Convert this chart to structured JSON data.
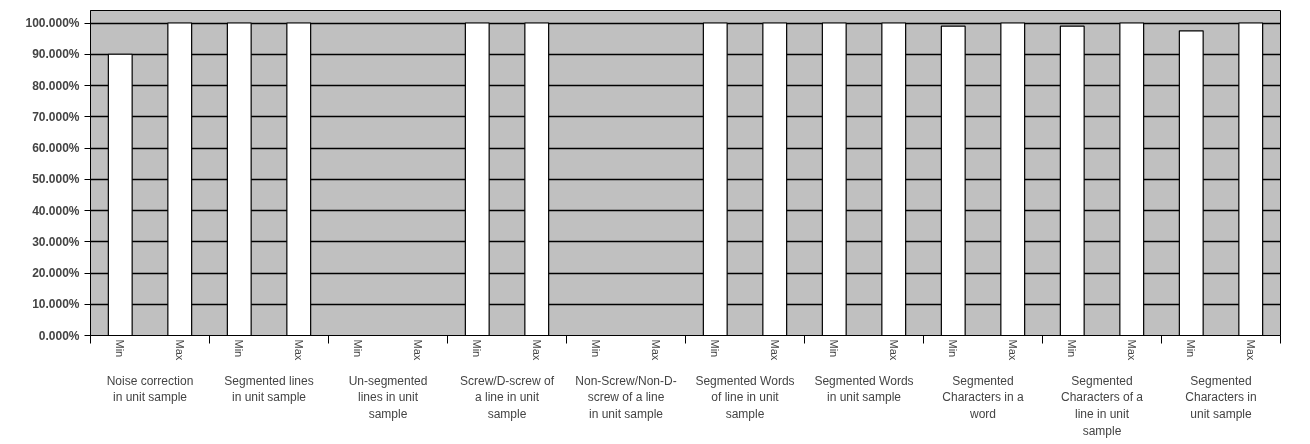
{
  "chart_data": {
    "type": "bar",
    "categories": [
      "Noise correction in unit sample",
      "Segmented lines in unit sample",
      "Un-segmented lines in unit sample",
      "Screw/D-screw of a line in unit sample",
      "Non-Screw/Non-D-screw of a line in unit sample",
      "Segmented Words of line in unit sample",
      "Segmented Words in unit sample",
      "Segmented Characters in a word",
      "Segmented Characters of a line in unit sample",
      "Segmented Characters in unit sample"
    ],
    "series": [
      {
        "name": "Min",
        "color": "#ffffff",
        "values": [
          90,
          100,
          0,
          100,
          0,
          100,
          100,
          99,
          99,
          97.5
        ]
      },
      {
        "name": "Max",
        "color": "#ffffff",
        "values": [
          100,
          100,
          0,
          100,
          0,
          100,
          100,
          100,
          100,
          100
        ]
      }
    ],
    "ylim": [
      0,
      100
    ],
    "yticks": [
      {
        "value": 0,
        "label": "0.000%"
      },
      {
        "value": 10,
        "label": "10.000%"
      },
      {
        "value": 20,
        "label": "20.000%"
      },
      {
        "value": 30,
        "label": "30.000%"
      },
      {
        "value": 40,
        "label": "40.000%"
      },
      {
        "value": 50,
        "label": "50.000%"
      },
      {
        "value": 60,
        "label": "60.000%"
      },
      {
        "value": 70,
        "label": "70.000%"
      },
      {
        "value": 80,
        "label": "80.000%"
      },
      {
        "value": 90,
        "label": "90.000%"
      },
      {
        "value": 100,
        "label": "100.000%"
      }
    ],
    "grid": "y",
    "legend": false
  }
}
